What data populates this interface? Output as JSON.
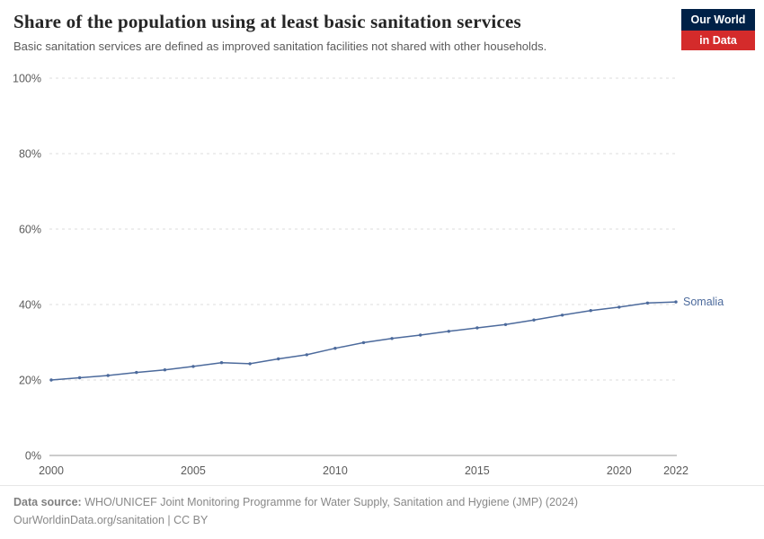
{
  "header": {
    "title": "Share of the population using at least basic sanitation services",
    "subtitle": "Basic sanitation services are defined as improved sanitation facilities not shared with other households."
  },
  "logo": {
    "line1": "Our World",
    "line2": "in Data",
    "bg": "#002147",
    "accent": "#d42b2b"
  },
  "chart_data": {
    "type": "line",
    "title": "Share of the population using at least basic sanitation services",
    "subtitle": "Basic sanitation services are defined as improved sanitation facilities not shared with other households.",
    "xlabel": "",
    "ylabel": "",
    "xlim": [
      2000,
      2022
    ],
    "ylim": [
      0,
      100
    ],
    "x_ticks": [
      2000,
      2005,
      2010,
      2015,
      2020,
      2022
    ],
    "y_ticks": [
      0,
      20,
      40,
      60,
      80,
      100
    ],
    "y_tick_suffix": "%",
    "grid": "horizontal-dashed",
    "legend_position": "end-of-line-label",
    "grid_color": "#dcdcdc",
    "axis_color": "#999999",
    "tick_label_color": "#5b5b5b",
    "series": [
      {
        "name": "Somalia",
        "color": "#4c6a9c",
        "x": [
          2000,
          2001,
          2002,
          2003,
          2004,
          2005,
          2006,
          2007,
          2008,
          2009,
          2010,
          2011,
          2012,
          2013,
          2014,
          2015,
          2016,
          2017,
          2018,
          2019,
          2020,
          2021,
          2022
        ],
        "values": [
          20.0,
          20.6,
          21.2,
          22.0,
          22.7,
          23.6,
          24.6,
          24.3,
          25.6,
          26.7,
          28.4,
          29.9,
          31.0,
          31.9,
          32.9,
          33.8,
          34.7,
          35.9,
          37.2,
          38.4,
          39.3,
          40.4,
          40.7
        ]
      }
    ]
  },
  "footer": {
    "datasource_label": "Data source:",
    "datasource_text": "WHO/UNICEF Joint Monitoring Programme for Water Supply, Sanitation and Hygiene (JMP) (2024)",
    "license": "OurWorldinData.org/sanitation | CC BY"
  }
}
